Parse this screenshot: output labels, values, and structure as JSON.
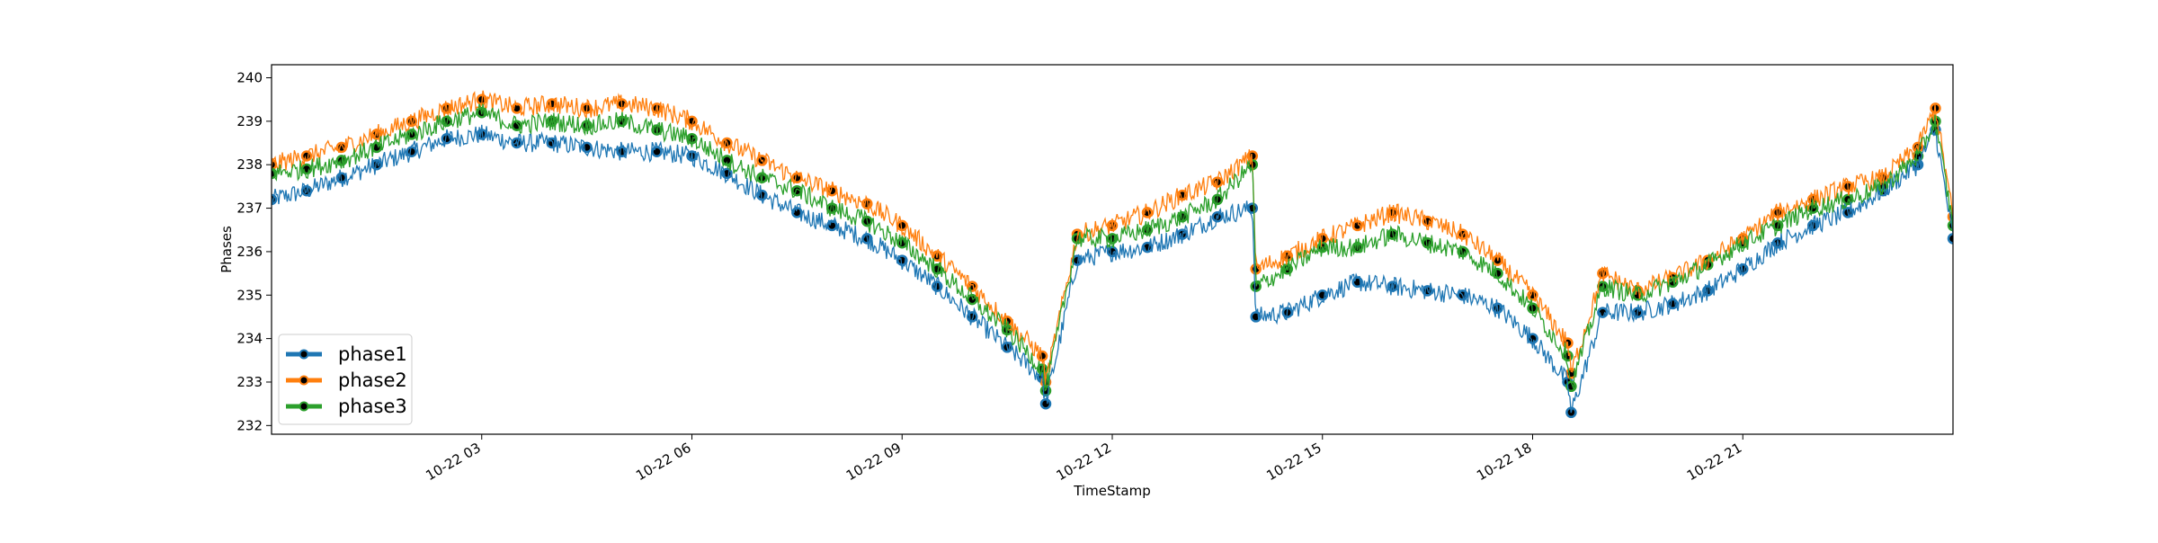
{
  "chart_data": {
    "type": "line",
    "title": "",
    "xlabel": "TimeStamp",
    "ylabel": "Phases",
    "x_unit": "hours since 10-22 00:00",
    "xlim": [
      0,
      24
    ],
    "ylim": [
      231.8,
      240.3
    ],
    "x_ticks": [
      {
        "x": 3,
        "label": "10-22 03"
      },
      {
        "x": 6,
        "label": "10-22 06"
      },
      {
        "x": 9,
        "label": "10-22 09"
      },
      {
        "x": 12,
        "label": "10-22 12"
      },
      {
        "x": 15,
        "label": "10-22 15"
      },
      {
        "x": 18,
        "label": "10-22 18"
      },
      {
        "x": 21,
        "label": "10-22 21"
      }
    ],
    "y_ticks": [
      232,
      233,
      234,
      235,
      236,
      237,
      238,
      239,
      240
    ],
    "grid": false,
    "legend": {
      "placement": "lower-left",
      "entries": [
        "phase1",
        "phase2",
        "phase3"
      ]
    },
    "series": [
      {
        "name": "phase1",
        "color": "#1f77b4",
        "x": [
          0,
          0.5,
          1,
          1.5,
          2,
          2.5,
          3,
          3.5,
          4,
          4.5,
          5,
          5.5,
          6,
          6.5,
          7,
          7.5,
          8,
          8.5,
          9,
          9.5,
          10,
          10.5,
          11,
          11.05,
          11.5,
          12,
          12.5,
          13,
          13.5,
          14,
          14.05,
          14.5,
          15,
          15.5,
          16,
          16.5,
          17,
          17.5,
          18,
          18.5,
          18.55,
          19,
          19.5,
          20,
          20.5,
          21,
          21.5,
          22,
          22.5,
          23,
          23.5,
          23.75,
          24
        ],
        "y": [
          237.2,
          237.4,
          237.7,
          238.0,
          238.3,
          238.6,
          238.7,
          238.5,
          238.5,
          238.4,
          238.3,
          238.3,
          238.2,
          237.8,
          237.3,
          236.9,
          236.6,
          236.3,
          235.8,
          235.2,
          234.5,
          233.8,
          233.1,
          232.5,
          235.8,
          236.0,
          236.1,
          236.4,
          236.8,
          237.0,
          234.5,
          234.6,
          235.0,
          235.3,
          235.2,
          235.1,
          235.0,
          234.7,
          234.0,
          233.0,
          232.3,
          234.6,
          234.6,
          234.8,
          235.1,
          235.6,
          236.2,
          236.6,
          236.9,
          237.4,
          238.0,
          238.8,
          236.3
        ]
      },
      {
        "name": "phase2",
        "color": "#ff7f0e",
        "x": [
          0,
          0.5,
          1,
          1.5,
          2,
          2.5,
          3,
          3.5,
          4,
          4.5,
          5,
          5.5,
          6,
          6.5,
          7,
          7.5,
          8,
          8.5,
          9,
          9.5,
          10,
          10.5,
          11,
          11.05,
          11.5,
          12,
          12.5,
          13,
          13.5,
          14,
          14.05,
          14.5,
          15,
          15.5,
          16,
          16.5,
          17,
          17.5,
          18,
          18.5,
          18.55,
          19,
          19.5,
          20,
          20.5,
          21,
          21.5,
          22,
          22.5,
          23,
          23.5,
          23.75,
          24
        ],
        "y": [
          238.0,
          238.2,
          238.4,
          238.7,
          239.0,
          239.3,
          239.5,
          239.3,
          239.4,
          239.3,
          239.4,
          239.3,
          239.0,
          238.5,
          238.1,
          237.7,
          237.4,
          237.1,
          236.6,
          235.9,
          235.2,
          234.4,
          233.6,
          233.0,
          236.4,
          236.6,
          236.9,
          237.3,
          237.6,
          238.2,
          235.6,
          235.9,
          236.3,
          236.6,
          236.9,
          236.7,
          236.4,
          235.8,
          235.0,
          233.9,
          233.2,
          235.5,
          235.1,
          235.4,
          235.8,
          236.3,
          236.9,
          237.2,
          237.5,
          237.7,
          238.4,
          239.3,
          236.8
        ]
      },
      {
        "name": "phase3",
        "color": "#2ca02c",
        "x": [
          0,
          0.5,
          1,
          1.5,
          2,
          2.5,
          3,
          3.5,
          4,
          4.5,
          5,
          5.5,
          6,
          6.5,
          7,
          7.5,
          8,
          8.5,
          9,
          9.5,
          10,
          10.5,
          11,
          11.05,
          11.5,
          12,
          12.5,
          13,
          13.5,
          14,
          14.05,
          14.5,
          15,
          15.5,
          16,
          16.5,
          17,
          17.5,
          18,
          18.5,
          18.55,
          19,
          19.5,
          20,
          20.5,
          21,
          21.5,
          22,
          22.5,
          23,
          23.5,
          23.75,
          24
        ],
        "y": [
          237.8,
          237.9,
          238.1,
          238.4,
          238.7,
          239.0,
          239.2,
          238.9,
          239.0,
          238.9,
          239.0,
          238.8,
          238.6,
          238.1,
          237.7,
          237.4,
          237.0,
          236.7,
          236.2,
          235.6,
          234.9,
          234.2,
          233.3,
          232.8,
          236.3,
          236.3,
          236.5,
          236.8,
          237.2,
          238.0,
          235.2,
          235.6,
          236.1,
          236.1,
          236.4,
          236.2,
          236.0,
          235.5,
          234.7,
          233.6,
          232.9,
          235.2,
          235.0,
          235.3,
          235.7,
          236.2,
          236.6,
          237.0,
          237.2,
          237.5,
          238.2,
          239.0,
          236.6
        ]
      }
    ],
    "annotations": []
  }
}
